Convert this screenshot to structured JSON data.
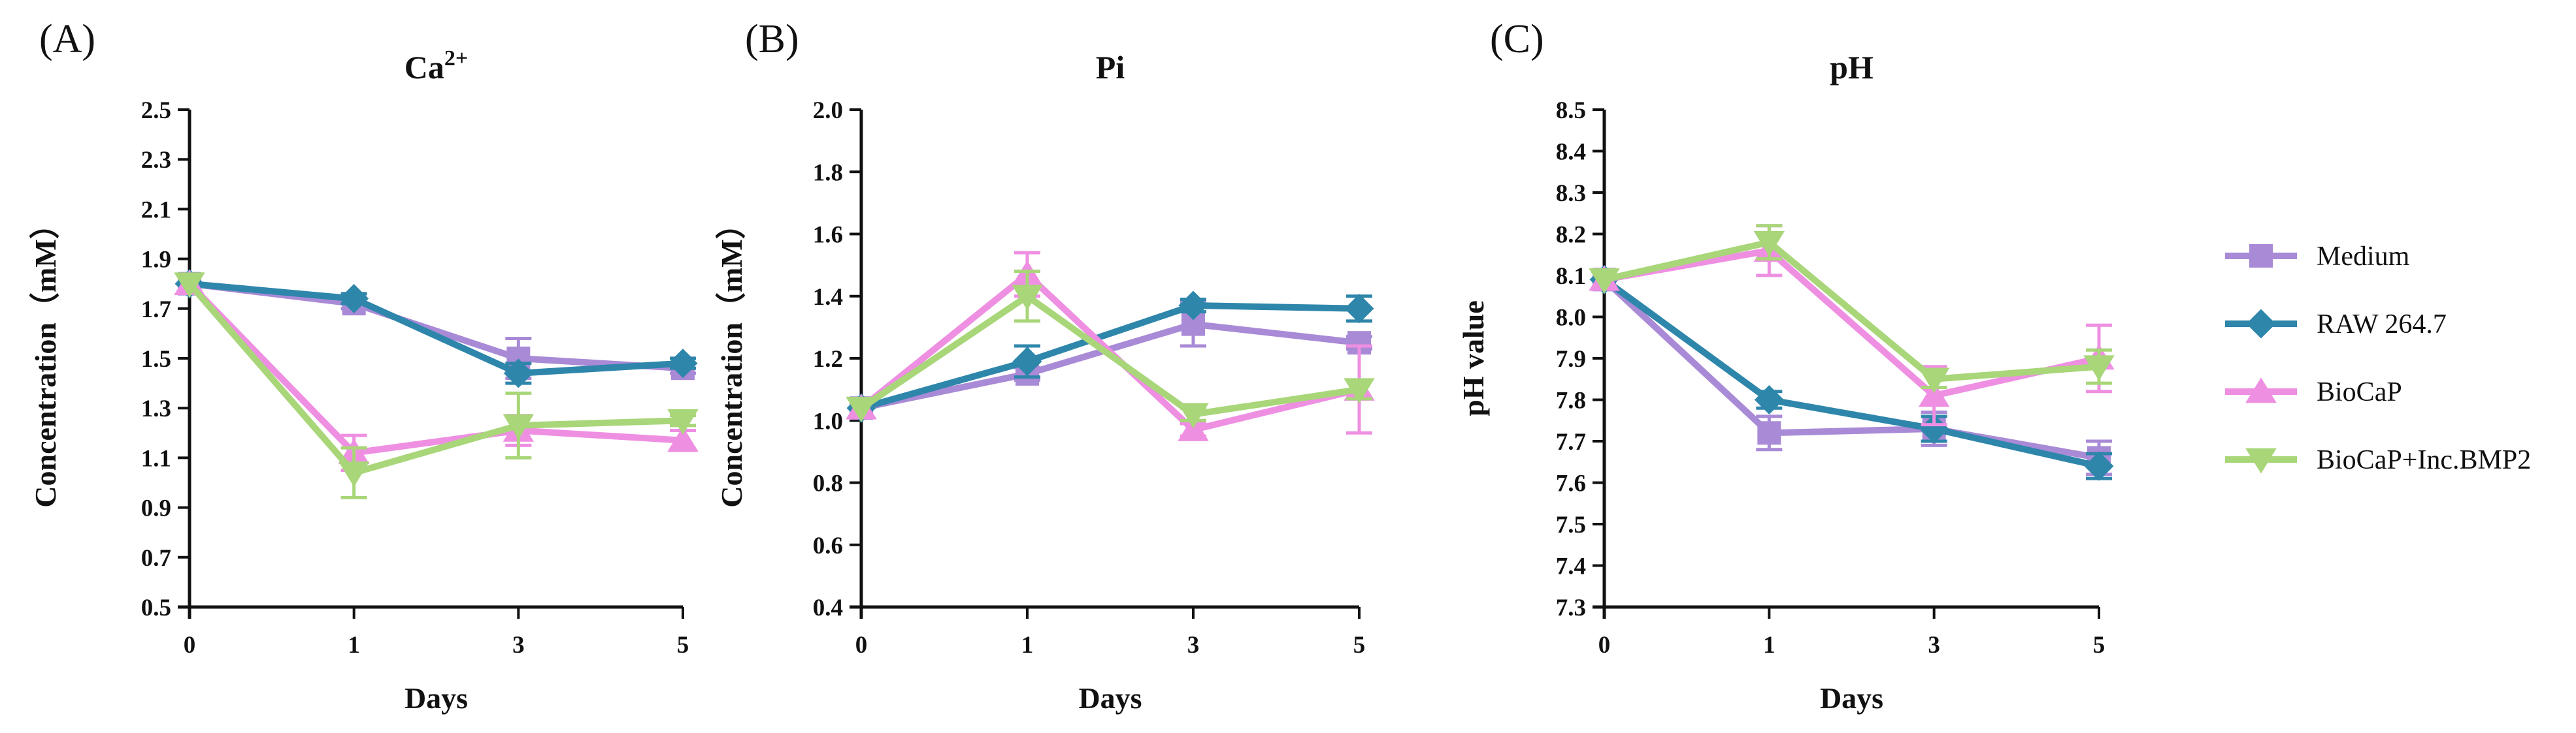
{
  "panels": [
    {
      "letter": "(A)"
    },
    {
      "letter": "(B)"
    },
    {
      "letter": "(C)"
    }
  ],
  "legend": {
    "items": [
      {
        "label": "Medium",
        "color": "#a98ad6",
        "marker": "square"
      },
      {
        "label": "RAW 264.7",
        "color": "#2e86ab",
        "marker": "diamond"
      },
      {
        "label": "BioCaP",
        "color": "#ee8fe2",
        "marker": "triangle-up"
      },
      {
        "label": "BioCaP+Inc.BMP2",
        "color": "#a8d679",
        "marker": "triangle-down"
      }
    ]
  },
  "chart_data": [
    {
      "type": "line",
      "title": "Ca",
      "title_superscript": "2+",
      "xlabel": "Days",
      "ylabel": "Concentration（mM）",
      "categories": [
        "0",
        "1",
        "3",
        "5"
      ],
      "ylim": [
        0.5,
        2.5
      ],
      "yticks": [
        "0.5",
        "0.7",
        "0.9",
        "1.1",
        "1.3",
        "1.5",
        "1.7",
        "1.9",
        "2.1",
        "2.3",
        "2.5"
      ],
      "series": [
        {
          "name": "Medium",
          "values": [
            1.8,
            1.72,
            1.5,
            1.46
          ],
          "errors": [
            0,
            0.02,
            0.08,
            0.02
          ]
        },
        {
          "name": "RAW 264.7",
          "values": [
            1.8,
            1.74,
            1.44,
            1.48
          ],
          "errors": [
            0,
            0.02,
            0.04,
            0.02
          ]
        },
        {
          "name": "BioCaP",
          "values": [
            1.8,
            1.12,
            1.21,
            1.17
          ],
          "errors": [
            0,
            0.07,
            0.06,
            0.04
          ]
        },
        {
          "name": "BioCaP+Inc.BMP2",
          "values": [
            1.8,
            1.04,
            1.23,
            1.25
          ],
          "errors": [
            0,
            0.1,
            0.13,
            0.02
          ]
        }
      ]
    },
    {
      "type": "line",
      "title": "Pi",
      "xlabel": "Days",
      "ylabel": "Concentration（mM）",
      "categories": [
        "0",
        "1",
        "3",
        "5"
      ],
      "ylim": [
        0.4,
        2.0
      ],
      "yticks": [
        "0.4",
        "0.6",
        "0.8",
        "1.0",
        "1.2",
        "1.4",
        "1.6",
        "1.8",
        "2.0"
      ],
      "series": [
        {
          "name": "Medium",
          "values": [
            1.04,
            1.15,
            1.31,
            1.25
          ],
          "errors": [
            0,
            0.02,
            0.07,
            0.02
          ]
        },
        {
          "name": "RAW 264.7",
          "values": [
            1.04,
            1.19,
            1.37,
            1.36
          ],
          "errors": [
            0,
            0.05,
            0.02,
            0.04
          ]
        },
        {
          "name": "BioCaP",
          "values": [
            1.04,
            1.47,
            0.97,
            1.1
          ],
          "errors": [
            0,
            0.07,
            0.02,
            0.14
          ]
        },
        {
          "name": "BioCaP+Inc.BMP2",
          "values": [
            1.04,
            1.4,
            1.02,
            1.1
          ],
          "errors": [
            0,
            0.08,
            0.02,
            0.03
          ]
        }
      ]
    },
    {
      "type": "line",
      "title": "pH",
      "xlabel": "Days",
      "ylabel": "pH value",
      "categories": [
        "0",
        "1",
        "3",
        "5"
      ],
      "ylim": [
        7.3,
        8.5
      ],
      "yticks": [
        "7.3",
        "7.4",
        "7.5",
        "7.6",
        "7.7",
        "7.8",
        "7.9",
        "8.0",
        "8.1",
        "8.2",
        "8.3",
        "8.4",
        "8.5"
      ],
      "series": [
        {
          "name": "Medium",
          "values": [
            8.09,
            7.72,
            7.73,
            7.66
          ],
          "errors": [
            0,
            0.04,
            0.04,
            0.04
          ]
        },
        {
          "name": "RAW 264.7",
          "values": [
            8.09,
            7.8,
            7.73,
            7.64
          ],
          "errors": [
            0,
            0.02,
            0.03,
            0.03
          ]
        },
        {
          "name": "BioCaP",
          "values": [
            8.09,
            8.16,
            7.81,
            7.9
          ],
          "errors": [
            0,
            0.06,
            0.07,
            0.08
          ]
        },
        {
          "name": "BioCaP+Inc.BMP2",
          "values": [
            8.09,
            8.18,
            7.85,
            7.88
          ],
          "errors": [
            0,
            0.04,
            0.02,
            0.04
          ]
        }
      ]
    }
  ]
}
